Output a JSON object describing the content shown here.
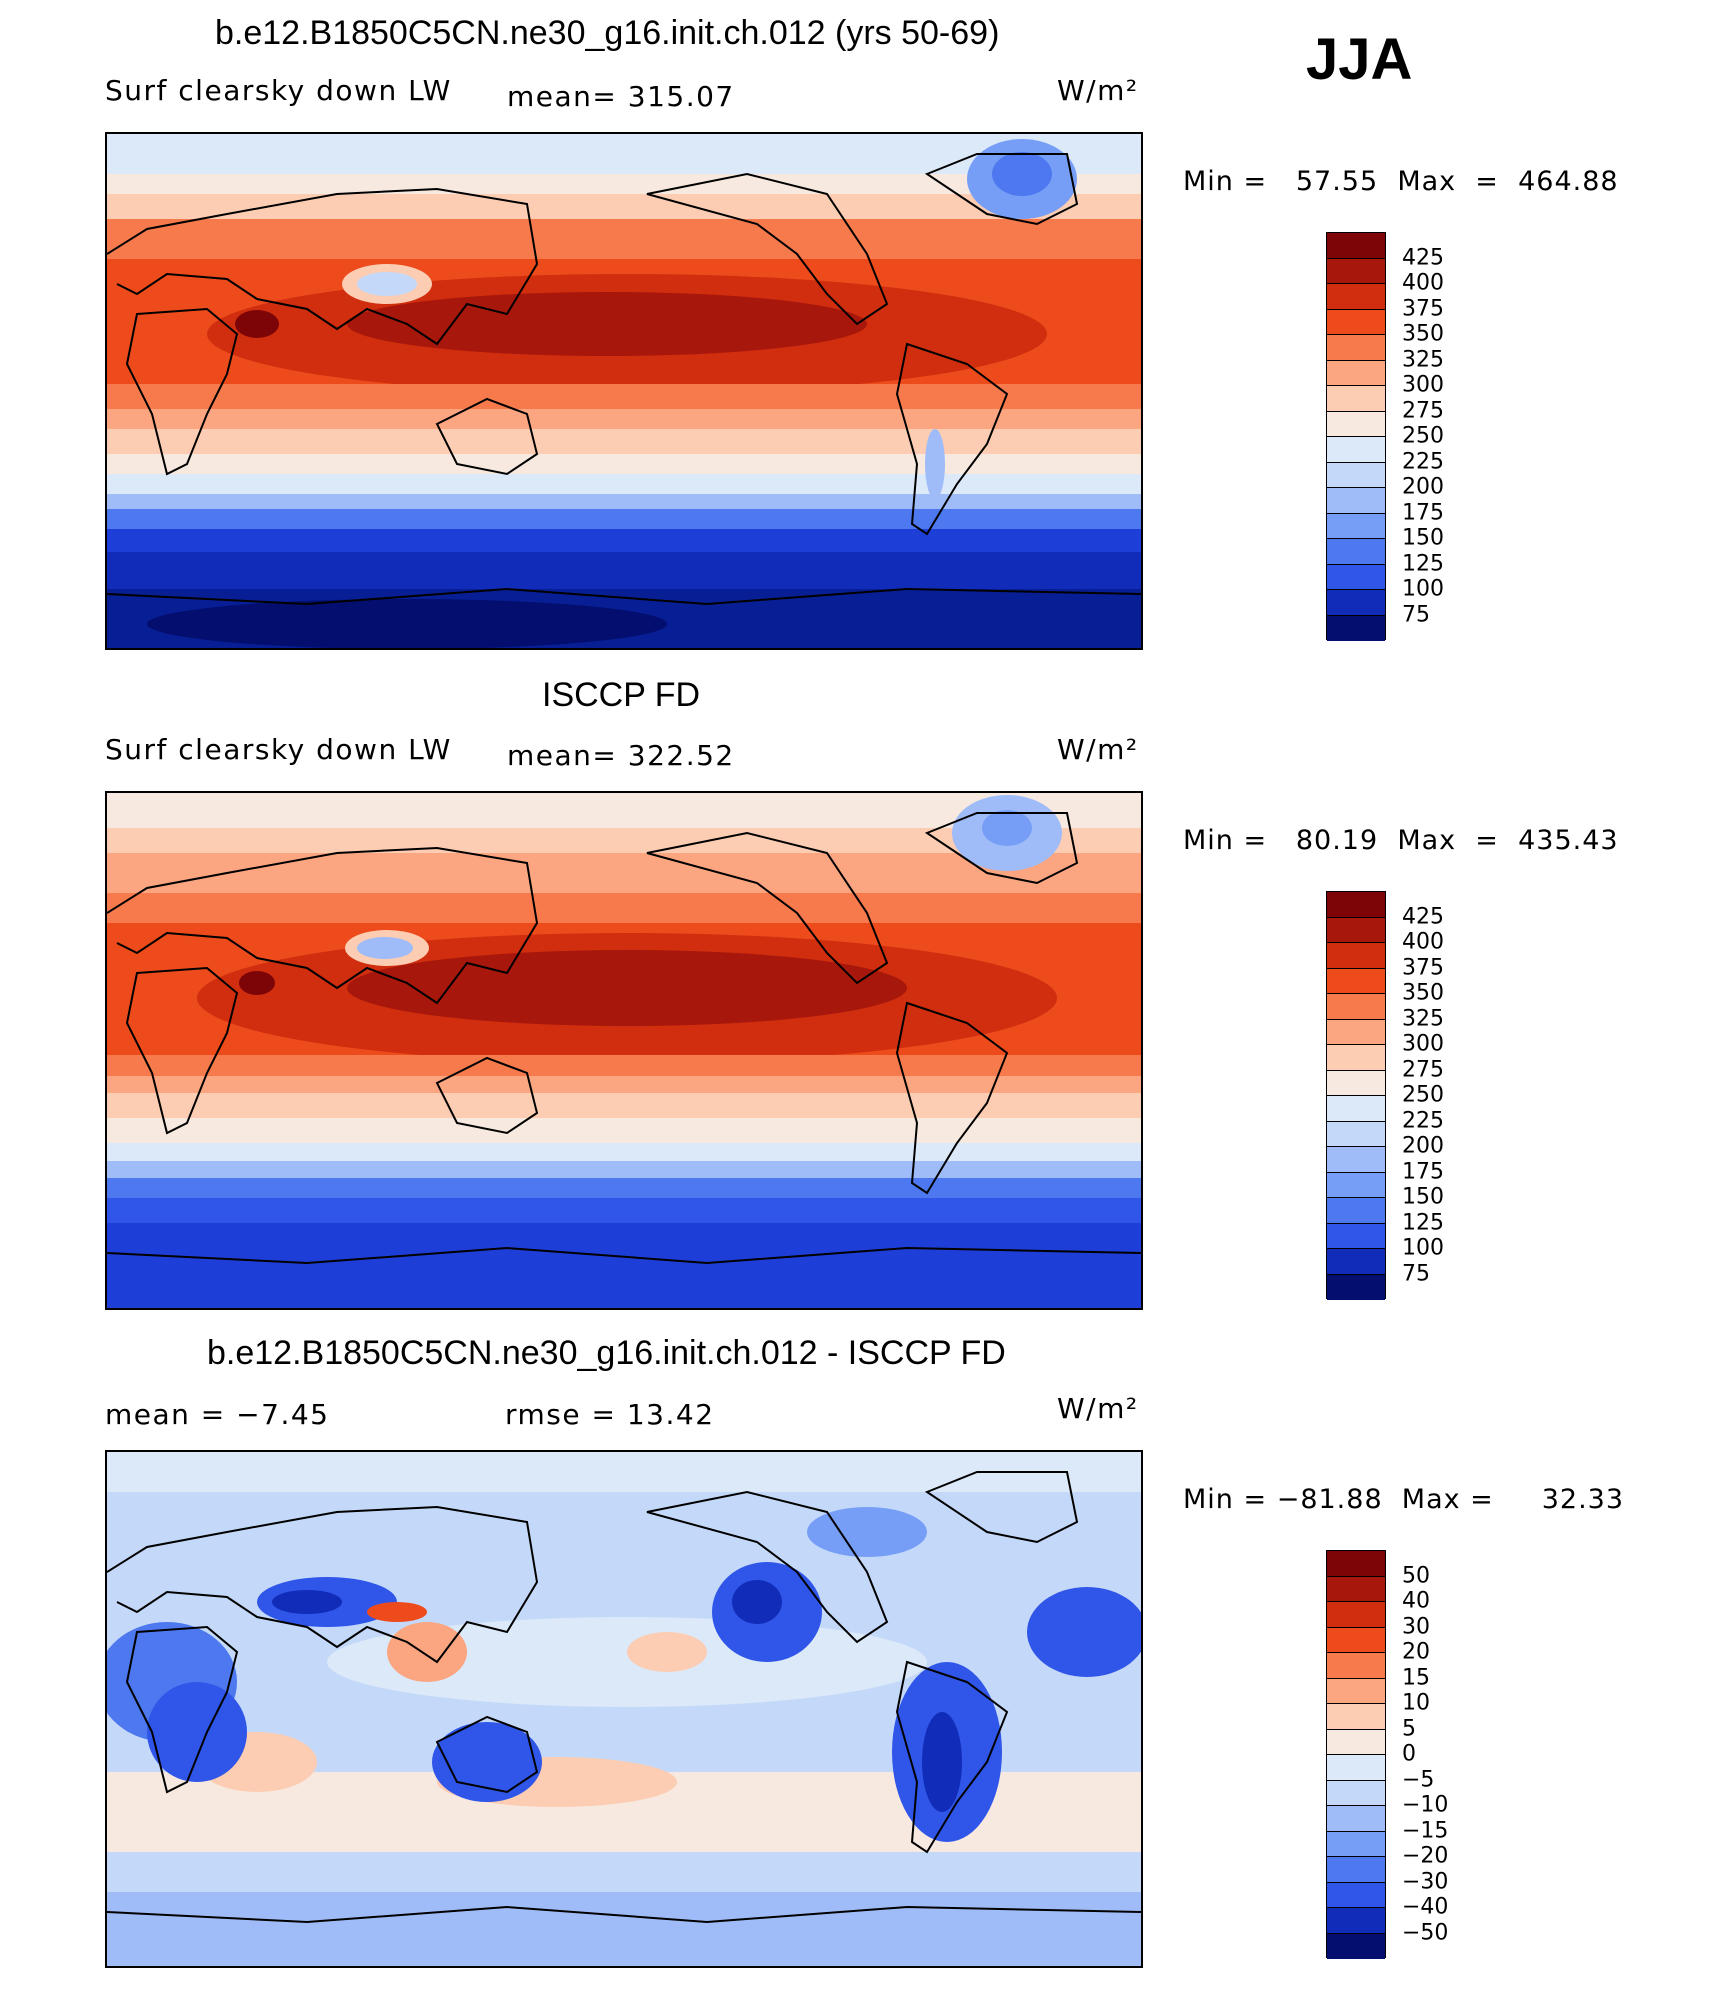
{
  "season": "JJA",
  "units": "W/m²",
  "colors": {
    "positive": [
      "#f7e9df",
      "#fccdb2",
      "#fba680",
      "#f77a4d",
      "#ee4b1d",
      "#d02e0f",
      "#a8170b",
      "#7d0508"
    ],
    "negative": [
      "#dbe9f9",
      "#c4d9f9",
      "#9fbcf8",
      "#769ef6",
      "#4d78f0",
      "#2f56e8",
      "#1d3fd8",
      "#112cb8",
      "#071e95",
      "#030e6e"
    ]
  },
  "panels": [
    {
      "title": "b.e12.B1850C5CN.ne30_g16.init.ch.012 (yrs 50-69)",
      "variable": "Surf clearsky down LW",
      "stat_text": "mean=  315.07",
      "units": "W/m²",
      "minmax": "Min =   57.55  Max  =  464.88",
      "stats": {
        "mean": 315.07,
        "min": 57.55,
        "max": 464.88
      },
      "legend": [
        "425",
        "400",
        "375",
        "350",
        "325",
        "300",
        "275",
        "250",
        "225",
        "200",
        "175",
        "150",
        "125",
        "100",
        "75"
      ]
    },
    {
      "title": "ISCCP FD",
      "variable": "Surf clearsky down LW",
      "stat_text": "mean=  322.52",
      "units": "W/m²",
      "minmax": "Min =   80.19  Max  =  435.43",
      "stats": {
        "mean": 322.52,
        "min": 80.19,
        "max": 435.43
      },
      "legend": [
        "425",
        "400",
        "375",
        "350",
        "325",
        "300",
        "275",
        "250",
        "225",
        "200",
        "175",
        "150",
        "125",
        "100",
        "75"
      ]
    },
    {
      "title": "b.e12.B1850C5CN.ne30_g16.init.ch.012 - ISCCP FD",
      "mean_text": "mean =    −7.45",
      "rmse_text": "rmse =    13.42",
      "units": "W/m²",
      "minmax": "Min = −81.88  Max =     32.33",
      "stats": {
        "mean": -7.45,
        "rmse": 13.42,
        "min": -81.88,
        "max": 32.33
      },
      "legend": [
        "50",
        "40",
        "30",
        "20",
        "15",
        "10",
        "5",
        "0",
        "−5",
        "−10",
        "−15",
        "−20",
        "−30",
        "−40",
        "−50"
      ]
    }
  ]
}
